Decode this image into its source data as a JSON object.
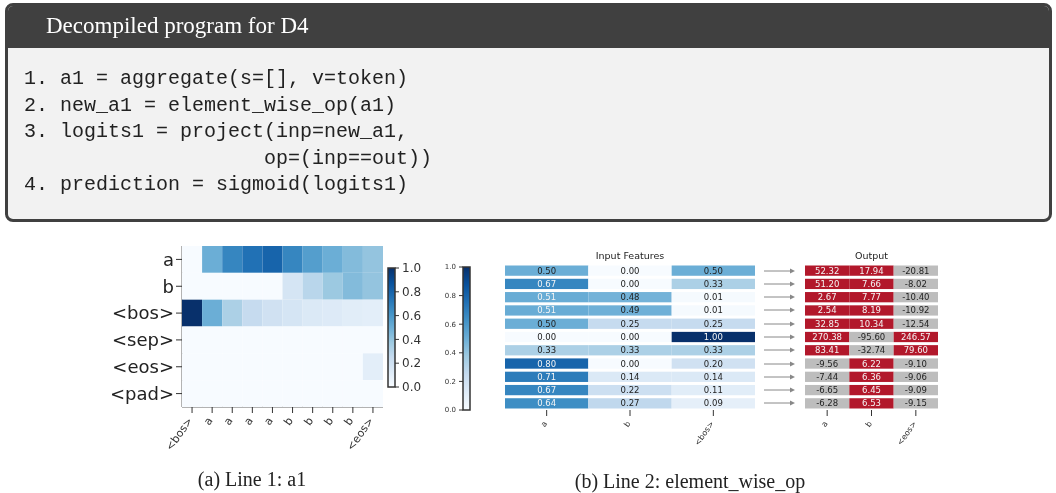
{
  "chart_data": [
    {
      "type": "other",
      "title": "Decompiled program for D4",
      "annotations": [
        "1. a1 = aggregate(s=[], v=token)",
        "2. new_a1 = element_wise_op(a1)",
        "3. logits1 = project(inp=new_a1,",
        "                    op=(inp==out))",
        "4. prediction = sigmoid(logits1)"
      ]
    },
    {
      "type": "heatmap",
      "categories": [
        "<bos>",
        "a",
        "a",
        "a",
        "a",
        "b",
        "b",
        "b",
        "b",
        "<eos>"
      ],
      "y_categories": [
        "a",
        "b",
        "<bos>",
        "<sep>",
        "<eos>",
        "<pad>"
      ],
      "cells": [
        [
          0,
          0.5,
          0.67,
          0.75,
          0.8,
          0.67,
          0.57,
          0.5,
          0.44,
          0.4
        ],
        [
          0,
          0,
          0,
          0,
          0,
          0.17,
          0.29,
          0.38,
          0.44,
          0.4
        ],
        [
          1,
          0.5,
          0.33,
          0.25,
          0.2,
          0.17,
          0.14,
          0.13,
          0.11,
          0.1
        ],
        [
          0,
          0,
          0,
          0,
          0,
          0,
          0,
          0,
          0,
          0
        ],
        [
          0,
          0,
          0,
          0,
          0,
          0,
          0,
          0,
          0,
          0.1
        ],
        [
          0,
          0,
          0,
          0,
          0,
          0,
          0,
          0,
          0,
          0
        ]
      ],
      "clim": [
        0,
        1
      ],
      "cticks": [
        {
          "value": 0,
          "label": "0.0"
        },
        {
          "value": 0.2,
          "label": "0.2"
        },
        {
          "value": 0.4,
          "label": "0.4"
        },
        {
          "value": 0.6,
          "label": "0.6"
        },
        {
          "value": 0.8,
          "label": "0.8"
        },
        {
          "value": 1,
          "label": "1.0"
        }
      ],
      "annotations": [
        "(a) Line 1: a1"
      ]
    },
    {
      "type": "heatmap",
      "title": "Input Features",
      "categories": [
        "a",
        "b",
        "<bos>"
      ],
      "y_categories": [
        null,
        null,
        null,
        null,
        null,
        null,
        null,
        null,
        null,
        null,
        null
      ],
      "tick_labels": "x",
      "cells": [
        [
          0.5,
          0,
          0.5
        ],
        [
          0.67,
          0,
          0.33
        ],
        [
          0.51,
          0.48,
          0.01
        ],
        [
          0.51,
          0.49,
          0.01
        ],
        [
          0.5,
          0.25,
          0.25
        ],
        [
          0,
          0,
          1
        ],
        [
          0.33,
          0.33,
          0.33
        ],
        [
          0.8,
          0,
          0.2
        ],
        [
          0.71,
          0.14,
          0.14
        ],
        [
          0.67,
          0.22,
          0.11
        ],
        [
          0.64,
          0.27,
          0.09
        ]
      ],
      "cell_labels": [
        [
          "0.50",
          "0.00",
          "0.50"
        ],
        [
          "0.67",
          "0.00",
          "0.33"
        ],
        [
          "0.51",
          "0.48",
          "0.01"
        ],
        [
          "0.51",
          "0.49",
          "0.01"
        ],
        [
          "0.50",
          "0.25",
          "0.25"
        ],
        [
          "0.00",
          "0.00",
          "1.00"
        ],
        [
          "0.33",
          "0.33",
          "0.33"
        ],
        [
          "0.80",
          "0.00",
          "0.20"
        ],
        [
          "0.71",
          "0.14",
          "0.14"
        ],
        [
          "0.67",
          "0.22",
          "0.11"
        ],
        [
          "0.64",
          "0.27",
          "0.09"
        ]
      ],
      "clim": [
        0,
        1
      ],
      "cticks": [
        {
          "value": 0,
          "label": "0.0"
        },
        {
          "value": 0.2,
          "label": "0.2"
        },
        {
          "value": 0.4,
          "label": "0.4"
        },
        {
          "value": 0.6,
          "label": "0.6"
        },
        {
          "value": 0.8,
          "label": "0.8"
        },
        {
          "value": 1,
          "label": "1.0"
        }
      ],
      "annotations": [
        "(b) Line 2: element_wise_op"
      ]
    },
    {
      "type": "heatmap",
      "title": "Output",
      "categories": [
        "a",
        "b",
        "<eos>"
      ],
      "y_categories": [
        null,
        null,
        null,
        null,
        null,
        null,
        null,
        null,
        null,
        null,
        null
      ],
      "tick_labels": "x",
      "cells": [
        [
          52.32,
          17.94,
          -20.81
        ],
        [
          51.2,
          7.66,
          -8.02
        ],
        [
          2.67,
          7.77,
          -10.4
        ],
        [
          2.54,
          8.19,
          -10.92
        ],
        [
          32.85,
          10.34,
          -12.54
        ],
        [
          270.38,
          -95.6,
          246.57
        ],
        [
          83.41,
          -32.74,
          79.6
        ],
        [
          -9.56,
          6.22,
          -9.1
        ],
        [
          -7.44,
          6.36,
          -9.06
        ],
        [
          -6.65,
          6.45,
          -9.09
        ],
        [
          -6.28,
          6.53,
          -9.15
        ]
      ],
      "cell_labels": [
        [
          "52.32",
          "17.94",
          "-20.81"
        ],
        [
          "51.20",
          "7.66",
          "-8.02"
        ],
        [
          "2.67",
          "7.77",
          "-10.40"
        ],
        [
          "2.54",
          "8.19",
          "-10.92"
        ],
        [
          "32.85",
          "10.34",
          "-12.54"
        ],
        [
          "270.38",
          "-95.60",
          "246.57"
        ],
        [
          "83.41",
          "-32.74",
          "79.60"
        ],
        [
          "-9.56",
          "6.22",
          "-9.10"
        ],
        [
          "-7.44",
          "6.36",
          "-9.06"
        ],
        [
          "-6.65",
          "6.45",
          "-9.09"
        ],
        [
          "-6.28",
          "6.53",
          "-9.15"
        ]
      ]
    }
  ]
}
